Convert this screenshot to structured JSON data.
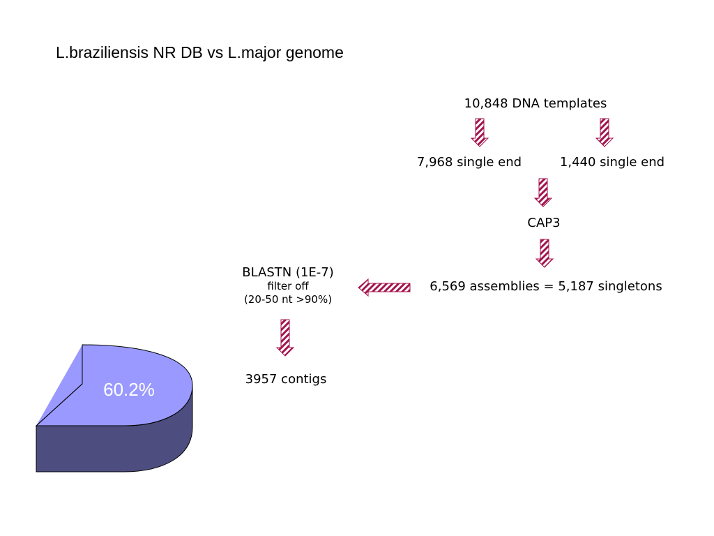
{
  "title": "L.braziliensis NR DB vs L.major genome",
  "flow": {
    "templates": "10,848 DNA templates",
    "single_end_left": "7,968 single end",
    "single_end_right": "1,440 single end",
    "cap3": "CAP3",
    "assemblies": "6,569 assemblies = 5,187 singletons",
    "blastn": "BLASTN (1E-7)",
    "filter": "filter off",
    "criteria": "(20-50 nt >90%)",
    "contigs": "3957 contigs"
  },
  "pie": {
    "label": "60.2%",
    "fraction": 0.602,
    "top_color": "#9999ff",
    "side_color": "#4d4d80"
  },
  "arrow_colors": {
    "stripe": "#a3134d",
    "fill": "#ffffff"
  }
}
